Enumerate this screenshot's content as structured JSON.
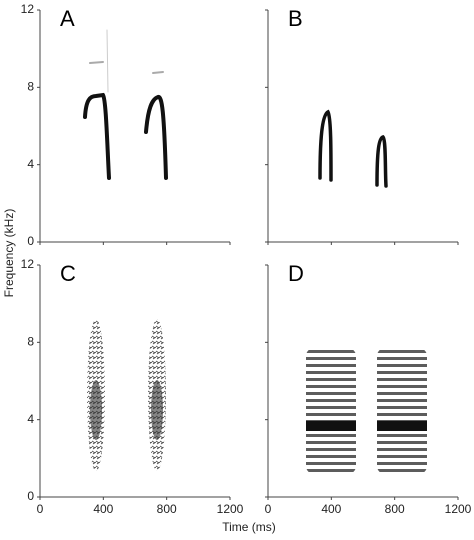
{
  "chart_data": [
    {
      "type": "spectrogram",
      "label": "A",
      "xlim": [
        0,
        1200
      ],
      "ylim": [
        0,
        12
      ],
      "xticks": [
        0,
        400,
        800,
        1200
      ],
      "yticks": [
        0,
        4,
        8,
        12
      ],
      "x_tick_labels": false,
      "y_tick_labels": true
    },
    {
      "type": "spectrogram",
      "label": "B",
      "xlim": [
        0,
        1200
      ],
      "ylim": [
        0,
        12
      ],
      "xticks": [
        0,
        400,
        800,
        1200
      ],
      "yticks": [
        0,
        4,
        8,
        12
      ],
      "x_tick_labels": false,
      "y_tick_labels": false
    },
    {
      "type": "spectrogram",
      "label": "C",
      "xlim": [
        0,
        1200
      ],
      "ylim": [
        0,
        12
      ],
      "xticks": [
        0,
        400,
        800,
        1200
      ],
      "yticks": [
        0,
        4,
        8,
        12
      ],
      "x_tick_labels": true,
      "y_tick_labels": true,
      "ylabel": "Frequency (kHz)"
    },
    {
      "type": "spectrogram",
      "label": "D",
      "xlim": [
        0,
        1200
      ],
      "ylim": [
        0,
        12
      ],
      "xticks": [
        0,
        400,
        800,
        1200
      ],
      "yticks": [
        0,
        4,
        8,
        12
      ],
      "x_tick_labels": true,
      "y_tick_labels": false,
      "xlabel": "Time (ms)"
    }
  ]
}
